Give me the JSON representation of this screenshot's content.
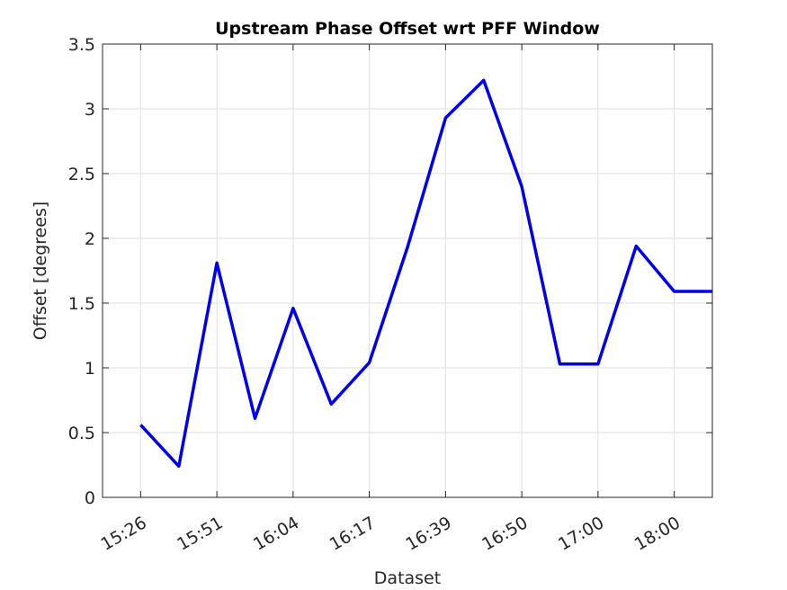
{
  "chart_data": {
    "type": "line",
    "title": "Upstream Phase Offset wrt PFF Window",
    "xlabel": "Dataset",
    "ylabel": "Offset [degrees]",
    "x": [
      1,
      2,
      3,
      4,
      5,
      6,
      7,
      8,
      9,
      10,
      11,
      12,
      13,
      14,
      15,
      16
    ],
    "x_ticks": [
      1,
      3,
      5,
      7,
      9,
      11,
      13,
      15
    ],
    "x_tick_labels": [
      "15:26",
      "15:51",
      "16:04",
      "16:17",
      "16:39",
      "16:50",
      "17:00",
      "18:00"
    ],
    "xlim": [
      0,
      16
    ],
    "ylim": [
      0,
      3.5
    ],
    "y_ticks": [
      0,
      0.5,
      1,
      1.5,
      2,
      2.5,
      3,
      3.5
    ],
    "y_tick_labels": [
      "0",
      "0.5",
      "1",
      "1.5",
      "2",
      "2.5",
      "3",
      "3.5"
    ],
    "grid": true,
    "series": [
      {
        "color": "#0000ee",
        "values": [
          0.56,
          0.24,
          1.81,
          0.61,
          1.46,
          0.72,
          1.04,
          1.93,
          2.93,
          3.22,
          2.4,
          1.03,
          1.03,
          1.94,
          1.59,
          1.59
        ]
      }
    ]
  }
}
